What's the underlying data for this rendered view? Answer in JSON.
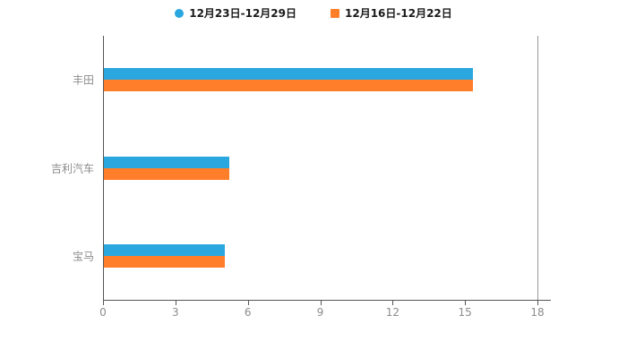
{
  "chart_data": {
    "type": "bar",
    "orientation": "horizontal",
    "title": "",
    "xlabel": "",
    "ylabel": "",
    "categories": [
      "丰田",
      "吉利汽车",
      "宝马"
    ],
    "series": [
      {
        "name": "12月23日-12月29日",
        "color": "#2BA7DF",
        "marker": "circle",
        "values": [
          15.3,
          5.2,
          5.0
        ]
      },
      {
        "name": "12月16日-12月22日",
        "color": "#FF7E29",
        "marker": "square",
        "values": [
          15.3,
          5.2,
          5.0
        ]
      }
    ],
    "xlim": [
      0,
      18
    ],
    "xticks": [
      0,
      3,
      6,
      9,
      12,
      15,
      18
    ],
    "grid": false,
    "legend_position": "top",
    "colors": {
      "axis": "#555555",
      "tick_text": "#8c8c8c",
      "category_text": "#8c8c8c",
      "legend_text": "#1a1a1a",
      "background": "#ffffff"
    }
  }
}
